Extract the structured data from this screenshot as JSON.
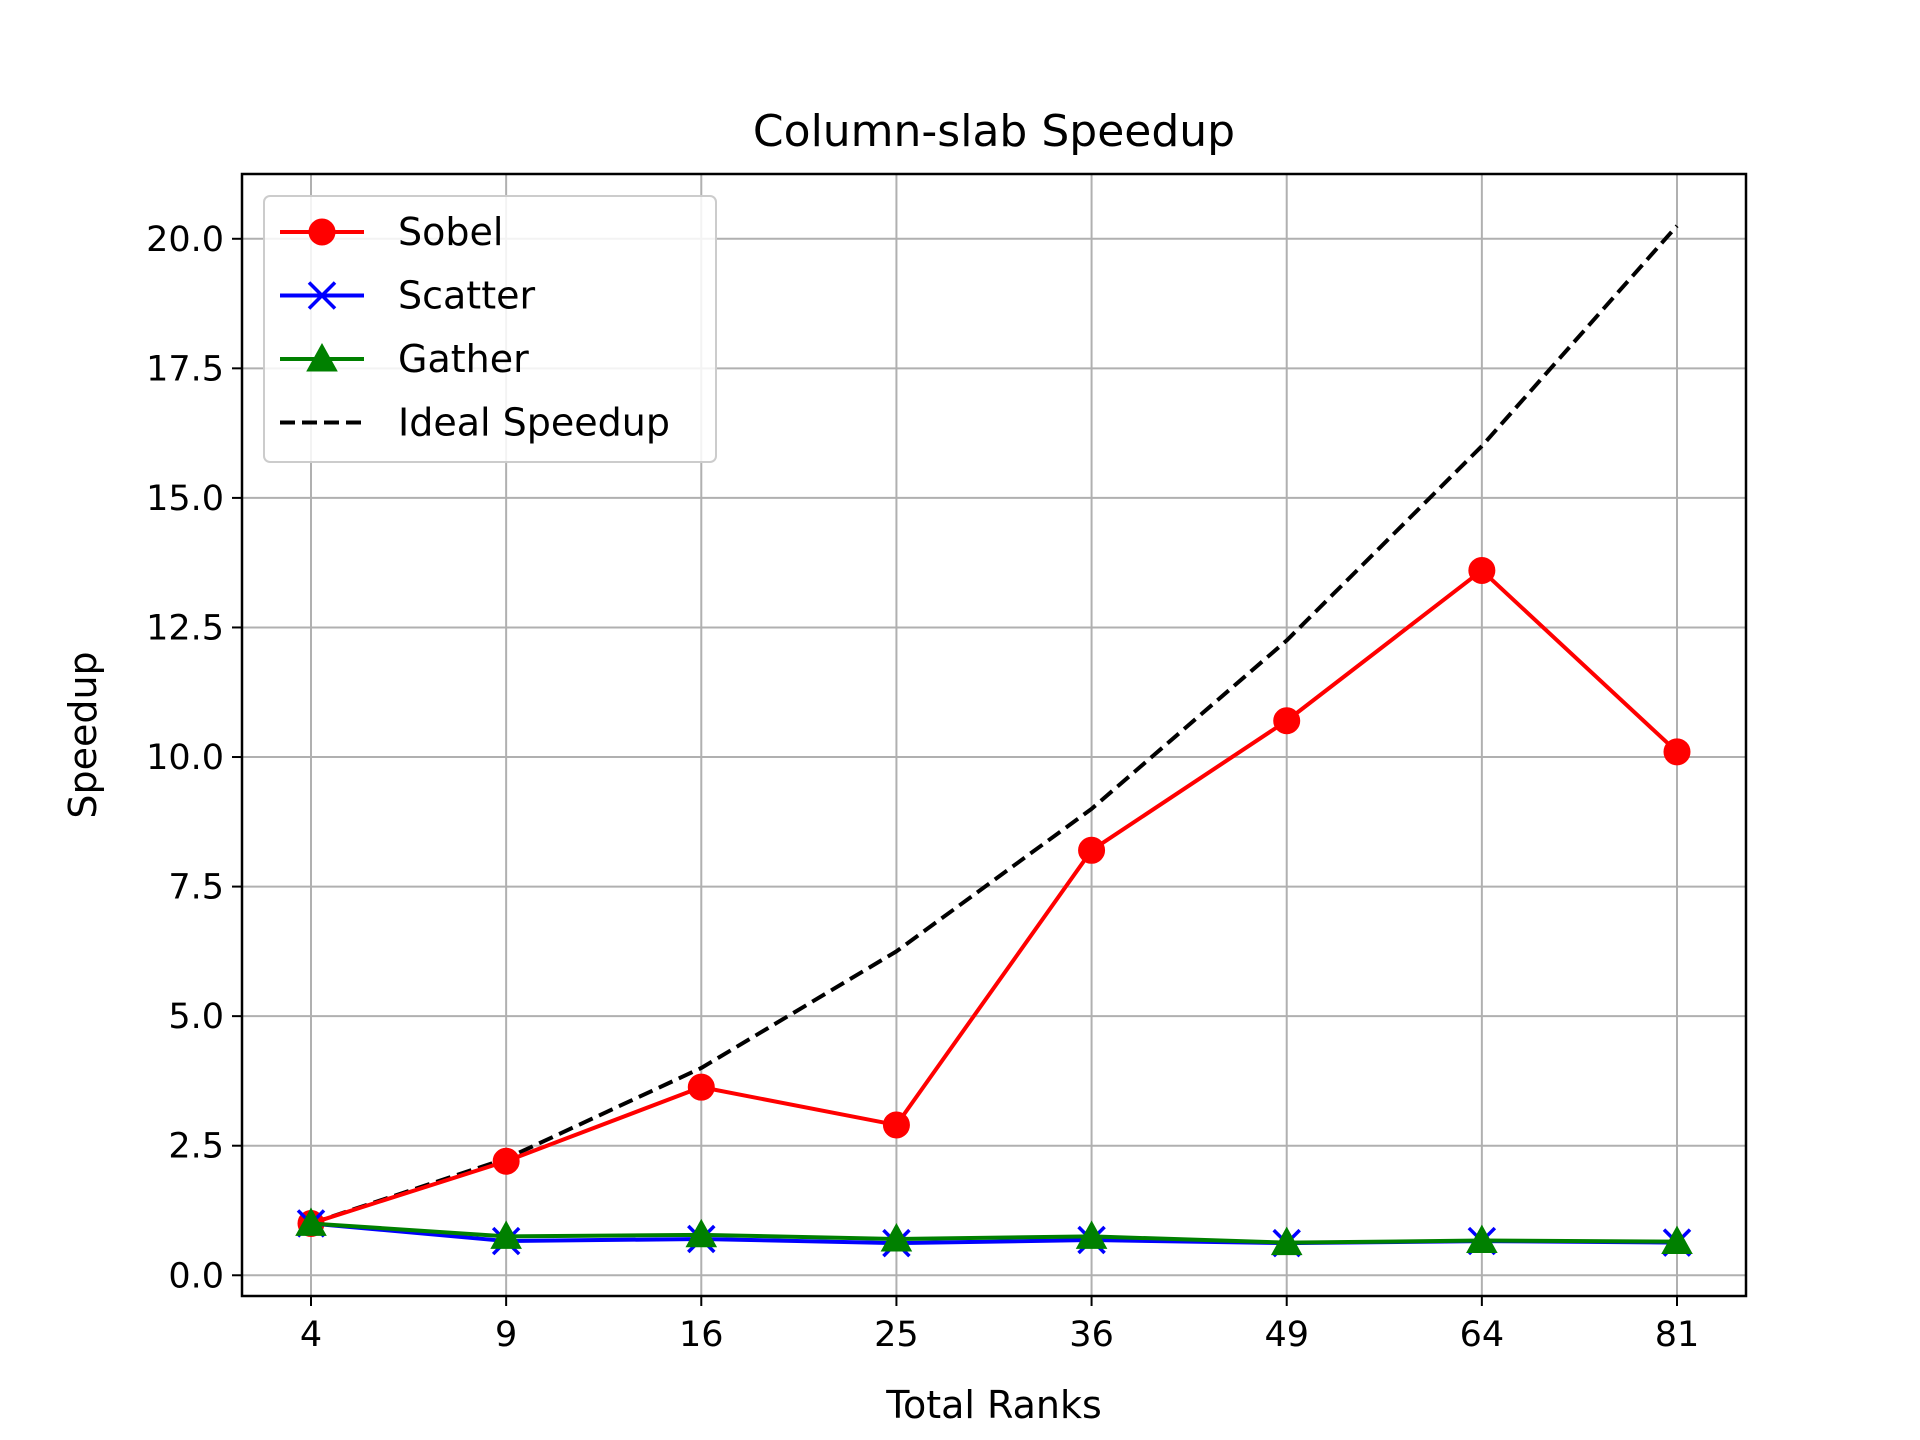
{
  "chart_data": {
    "type": "line",
    "title": "Column-slab Speedup",
    "xlabel": "Total Ranks",
    "ylabel": "Speedup",
    "x": [
      "4",
      "9",
      "16",
      "25",
      "36",
      "49",
      "64",
      "81"
    ],
    "ylim": [
      -0.4,
      21.25
    ],
    "yticks": [
      "0.0",
      "2.5",
      "5.0",
      "7.5",
      "10.0",
      "12.5",
      "15.0",
      "17.5",
      "20.0"
    ],
    "grid": true,
    "legend_position": "upper-left",
    "series": [
      {
        "name": "Sobel",
        "color": "#ff0000",
        "marker": "circle",
        "linestyle": "solid",
        "values": [
          1.0,
          2.2,
          3.63,
          2.9,
          8.2,
          10.7,
          13.6,
          10.1
        ]
      },
      {
        "name": "Scatter",
        "color": "#0000ff",
        "marker": "x",
        "linestyle": "solid",
        "values": [
          1.0,
          0.66,
          0.7,
          0.62,
          0.68,
          0.62,
          0.66,
          0.63
        ]
      },
      {
        "name": "Gather",
        "color": "#008000",
        "marker": "triangle",
        "linestyle": "solid",
        "values": [
          1.0,
          0.75,
          0.78,
          0.7,
          0.75,
          0.63,
          0.67,
          0.65
        ]
      },
      {
        "name": "Ideal Speedup",
        "color": "#000000",
        "marker": "none",
        "linestyle": "dashed",
        "values": [
          1.0,
          2.25,
          4.0,
          6.25,
          9.0,
          12.25,
          16.0,
          20.25
        ]
      }
    ]
  }
}
